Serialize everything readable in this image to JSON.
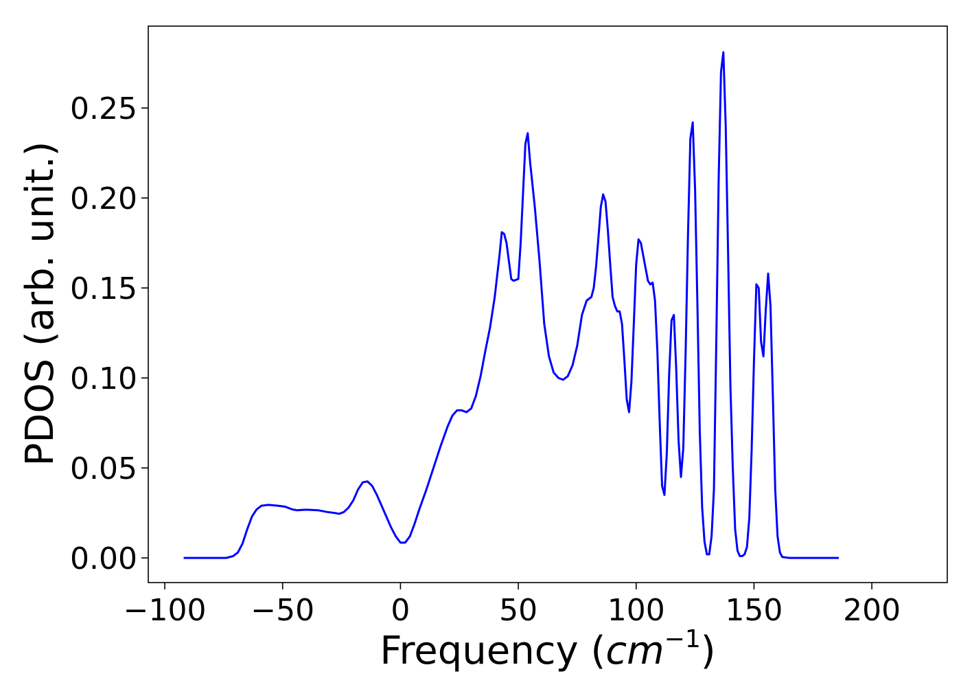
{
  "chart_data": {
    "type": "line",
    "title": "",
    "xlabel": {
      "text": "Frequency (",
      "unit_base": "cm",
      "unit_exponent": "−1",
      "suffix": ")"
    },
    "ylabel": "PDOS (arb. unit.)",
    "xlim": [
      -107,
      232
    ],
    "ylim": [
      -0.0137,
      0.2955
    ],
    "xticks": [
      -100,
      -50,
      0,
      50,
      100,
      150,
      200
    ],
    "xtick_labels": [
      "−100",
      "−50",
      "0",
      "50",
      "100",
      "150",
      "200"
    ],
    "yticks": [
      0.0,
      0.05,
      0.1,
      0.15,
      0.2,
      0.25
    ],
    "ytick_labels": [
      "0.00",
      "0.05",
      "0.10",
      "0.15",
      "0.20",
      "0.25"
    ],
    "grid": false,
    "legend": "none",
    "series": [
      {
        "color": "#0000ff",
        "points": [
          [
            -92,
            0.0
          ],
          [
            -80,
            0.0
          ],
          [
            -74,
            0.0
          ],
          [
            -71,
            0.001
          ],
          [
            -69,
            0.003
          ],
          [
            -67,
            0.008
          ],
          [
            -65,
            0.016
          ],
          [
            -63,
            0.023
          ],
          [
            -61,
            0.027
          ],
          [
            -59,
            0.029
          ],
          [
            -56,
            0.0295
          ],
          [
            -52,
            0.029
          ],
          [
            -49,
            0.0285
          ],
          [
            -46,
            0.027
          ],
          [
            -44,
            0.0265
          ],
          [
            -40,
            0.0268
          ],
          [
            -35,
            0.0265
          ],
          [
            -31,
            0.0255
          ],
          [
            -28,
            0.025
          ],
          [
            -26,
            0.0245
          ],
          [
            -24,
            0.0255
          ],
          [
            -22,
            0.028
          ],
          [
            -20,
            0.032
          ],
          [
            -18,
            0.038
          ],
          [
            -16,
            0.042
          ],
          [
            -14,
            0.0425
          ],
          [
            -12,
            0.04
          ],
          [
            -10,
            0.035
          ],
          [
            -8,
            0.029
          ],
          [
            -6,
            0.023
          ],
          [
            -4,
            0.017
          ],
          [
            -2,
            0.012
          ],
          [
            0,
            0.0085
          ],
          [
            2,
            0.0085
          ],
          [
            4,
            0.012
          ],
          [
            6,
            0.019
          ],
          [
            8,
            0.027
          ],
          [
            11,
            0.038
          ],
          [
            14,
            0.05
          ],
          [
            17,
            0.062
          ],
          [
            20,
            0.073
          ],
          [
            22,
            0.079
          ],
          [
            24,
            0.082
          ],
          [
            26,
            0.082
          ],
          [
            28,
            0.081
          ],
          [
            30,
            0.083
          ],
          [
            32,
            0.09
          ],
          [
            34,
            0.101
          ],
          [
            36,
            0.115
          ],
          [
            38,
            0.128
          ],
          [
            40,
            0.145
          ],
          [
            42,
            0.168
          ],
          [
            43,
            0.181
          ],
          [
            44,
            0.18
          ],
          [
            45,
            0.175
          ],
          [
            47,
            0.155
          ],
          [
            48,
            0.154
          ],
          [
            50,
            0.155
          ],
          [
            51,
            0.175
          ],
          [
            53,
            0.23
          ],
          [
            54,
            0.236
          ],
          [
            55,
            0.22
          ],
          [
            57,
            0.195
          ],
          [
            59,
            0.165
          ],
          [
            61,
            0.13
          ],
          [
            63,
            0.112
          ],
          [
            65,
            0.103
          ],
          [
            67,
            0.1
          ],
          [
            69,
            0.099
          ],
          [
            71,
            0.101
          ],
          [
            73,
            0.107
          ],
          [
            75,
            0.118
          ],
          [
            77,
            0.135
          ],
          [
            79,
            0.143
          ],
          [
            81,
            0.145
          ],
          [
            82,
            0.15
          ],
          [
            83,
            0.162
          ],
          [
            84,
            0.178
          ],
          [
            85,
            0.195
          ],
          [
            86,
            0.202
          ],
          [
            87,
            0.198
          ],
          [
            88,
            0.182
          ],
          [
            89,
            0.163
          ],
          [
            90,
            0.145
          ],
          [
            91,
            0.14
          ],
          [
            92,
            0.137
          ],
          [
            93,
            0.137
          ],
          [
            94,
            0.13
          ],
          [
            95,
            0.11
          ],
          [
            96,
            0.088
          ],
          [
            97,
            0.081
          ],
          [
            98,
            0.098
          ],
          [
            99,
            0.13
          ],
          [
            100,
            0.163
          ],
          [
            101,
            0.177
          ],
          [
            102,
            0.175
          ],
          [
            103,
            0.168
          ],
          [
            104,
            0.161
          ],
          [
            105,
            0.154
          ],
          [
            106,
            0.152
          ],
          [
            107,
            0.153
          ],
          [
            108,
            0.143
          ],
          [
            109,
            0.115
          ],
          [
            110,
            0.075
          ],
          [
            111,
            0.04
          ],
          [
            112,
            0.035
          ],
          [
            113,
            0.058
          ],
          [
            114,
            0.102
          ],
          [
            115,
            0.132
          ],
          [
            116,
            0.135
          ],
          [
            117,
            0.105
          ],
          [
            118,
            0.065
          ],
          [
            119,
            0.045
          ],
          [
            120,
            0.061
          ],
          [
            121,
            0.115
          ],
          [
            122,
            0.18
          ],
          [
            123,
            0.233
          ],
          [
            124,
            0.242
          ],
          [
            125,
            0.205
          ],
          [
            126,
            0.14
          ],
          [
            127,
            0.07
          ],
          [
            128,
            0.028
          ],
          [
            129,
            0.009
          ],
          [
            130,
            0.002
          ],
          [
            131,
            0.002
          ],
          [
            132,
            0.012
          ],
          [
            133,
            0.038
          ],
          [
            134,
            0.12
          ],
          [
            135,
            0.21
          ],
          [
            136,
            0.27
          ],
          [
            137,
            0.281
          ],
          [
            138,
            0.24
          ],
          [
            139,
            0.17
          ],
          [
            140,
            0.095
          ],
          [
            141,
            0.05
          ],
          [
            142,
            0.016
          ],
          [
            143,
            0.004
          ],
          [
            144,
            0.001
          ],
          [
            145,
            0.001
          ],
          [
            146,
            0.002
          ],
          [
            147,
            0.006
          ],
          [
            148,
            0.022
          ],
          [
            149,
            0.06
          ],
          [
            150,
            0.11
          ],
          [
            151,
            0.152
          ],
          [
            152,
            0.15
          ],
          [
            153,
            0.12
          ],
          [
            154,
            0.112
          ],
          [
            155,
            0.138
          ],
          [
            156,
            0.158
          ],
          [
            157,
            0.14
          ],
          [
            158,
            0.09
          ],
          [
            159,
            0.038
          ],
          [
            160,
            0.012
          ],
          [
            161,
            0.003
          ],
          [
            162,
            0.0005
          ],
          [
            165,
            0.0
          ],
          [
            175,
            0.0
          ],
          [
            186,
            0.0
          ]
        ]
      }
    ]
  }
}
